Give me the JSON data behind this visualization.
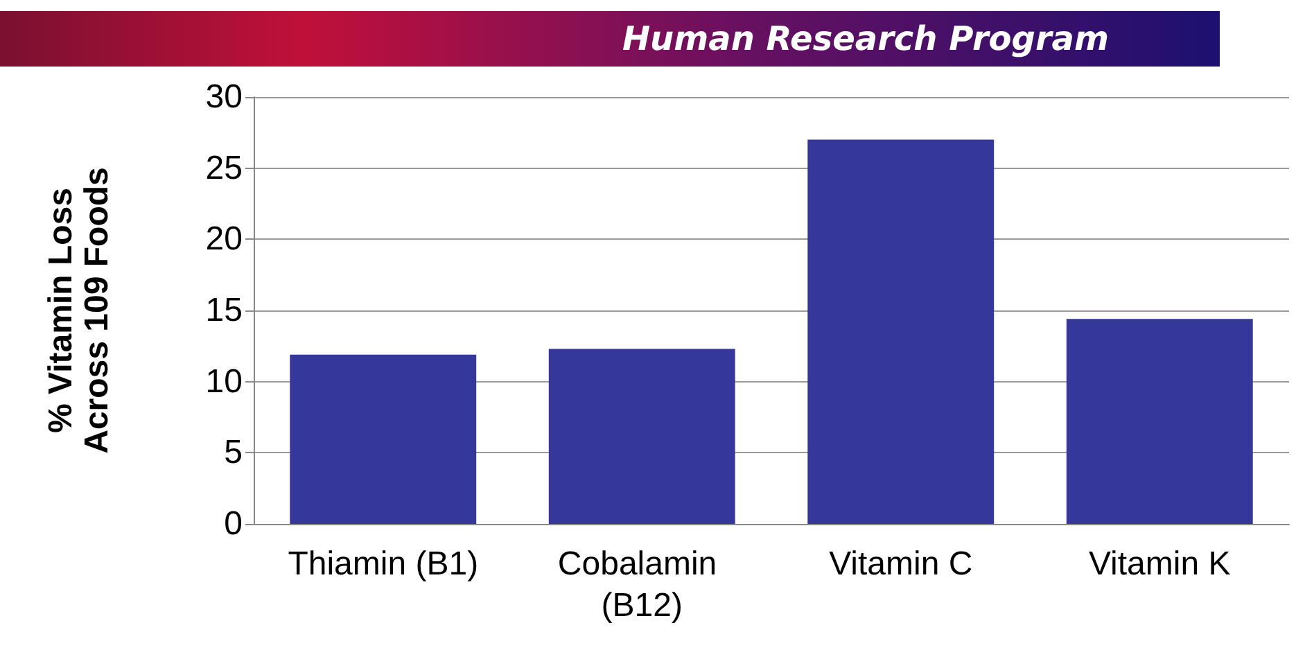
{
  "chart_data": {
    "type": "bar",
    "ylabel": "% Vitamin Loss\nAcross 109 Foods",
    "annotations": [
      "Human Research Program"
    ],
    "categories": [
      "Thiamin (B1)",
      "Cobalamin (B12)",
      "Vitamin C",
      "Vitamin K"
    ],
    "values": [
      11.9,
      12.3,
      27,
      14.4
    ],
    "color": "#36379a",
    "ylim": [
      0,
      30
    ],
    "yticks": [
      0,
      5,
      10,
      15,
      20,
      25,
      30
    ],
    "grid": "y"
  }
}
